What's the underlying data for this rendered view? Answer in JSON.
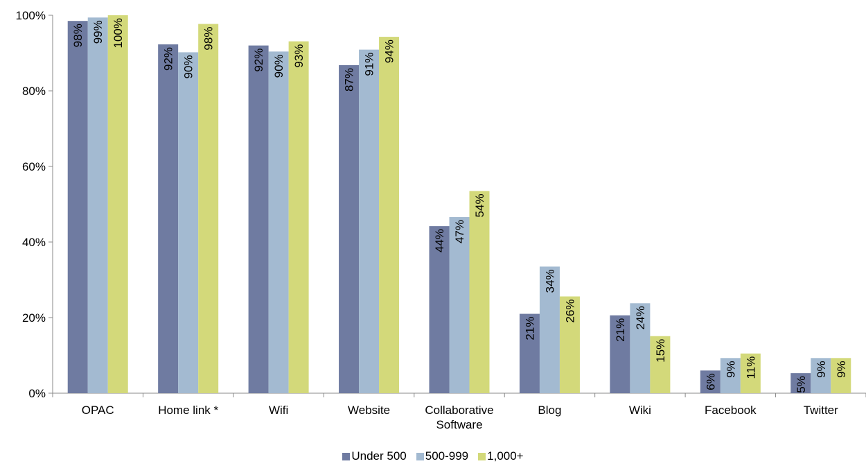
{
  "chart_data": {
    "type": "bar",
    "categories": [
      "OPAC",
      "Home link *",
      "Wifi",
      "Website",
      "Collaborative Software",
      "Blog",
      "Wiki",
      "Facebook",
      "Twitter"
    ],
    "category_lines": [
      [
        "OPAC"
      ],
      [
        "Home link *"
      ],
      [
        "Wifi"
      ],
      [
        "Website"
      ],
      [
        "Collaborative",
        "Software"
      ],
      [
        "Blog"
      ],
      [
        "Wiki"
      ],
      [
        "Facebook"
      ],
      [
        "Twitter"
      ]
    ],
    "series": [
      {
        "name": "Under 500",
        "color": "#6f7ba1",
        "values": [
          98.5,
          92.3,
          92,
          86.8,
          44.2,
          21,
          20.6,
          6,
          5.3
        ],
        "labels": [
          "98%",
          "92%",
          "92%",
          "87%",
          "44%",
          "21%",
          "21%",
          "6%",
          "5%"
        ]
      },
      {
        "name": "500-999",
        "color": "#a3bad1",
        "values": [
          99.4,
          90.2,
          90.4,
          90.9,
          46.6,
          33.5,
          23.8,
          9.3,
          9.3
        ],
        "labels": [
          "99%",
          "90%",
          "90%",
          "91%",
          "47%",
          "34%",
          "24%",
          "9%",
          "9%"
        ]
      },
      {
        "name": "1,000+",
        "color": "#d3d97a",
        "values": [
          100,
          97.7,
          93.1,
          94.3,
          53.5,
          25.6,
          15.1,
          10.5,
          9.3
        ],
        "labels": [
          "100%",
          "98%",
          "93%",
          "94%",
          "54%",
          "26%",
          "15%",
          "11%",
          "9%"
        ]
      }
    ],
    "y_ticks": [
      "0%",
      "20%",
      "40%",
      "60%",
      "80%",
      "100%"
    ],
    "ylim": [
      0,
      100
    ],
    "title": "",
    "xlabel": "",
    "ylabel": "",
    "grid": false,
    "legend_position": "bottom"
  }
}
